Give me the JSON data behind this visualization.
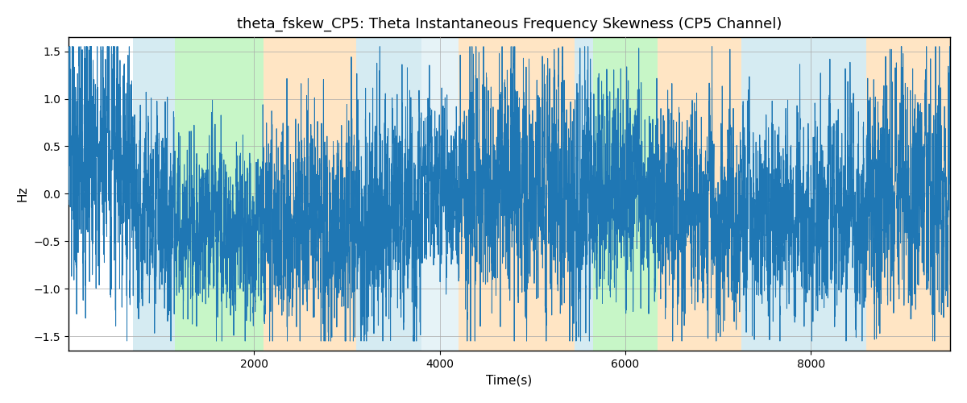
{
  "title": "theta_fskew_CP5: Theta Instantaneous Frequency Skewness (CP5 Channel)",
  "xlabel": "Time(s)",
  "ylabel": "Hz",
  "ylim": [
    -1.65,
    1.65
  ],
  "xlim": [
    0,
    9500
  ],
  "line_color": "#1f77b4",
  "line_width": 0.7,
  "grid_color": "#aaaaaa",
  "grid_linewidth": 0.5,
  "yticks": [
    -1.5,
    -1.0,
    -0.5,
    0.0,
    0.5,
    1.0,
    1.5
  ],
  "xticks": [
    2000,
    4000,
    6000,
    8000
  ],
  "colored_bands": [
    {
      "xmin": 700,
      "xmax": 1150,
      "color": "#add8e6",
      "alpha": 0.5
    },
    {
      "xmin": 1150,
      "xmax": 2100,
      "color": "#90ee90",
      "alpha": 0.5
    },
    {
      "xmin": 2100,
      "xmax": 3100,
      "color": "#ffd59e",
      "alpha": 0.6
    },
    {
      "xmin": 3100,
      "xmax": 3800,
      "color": "#add8e6",
      "alpha": 0.5
    },
    {
      "xmin": 3800,
      "xmax": 4200,
      "color": "#add8e6",
      "alpha": 0.3
    },
    {
      "xmin": 4200,
      "xmax": 5450,
      "color": "#ffd59e",
      "alpha": 0.6
    },
    {
      "xmin": 5450,
      "xmax": 5650,
      "color": "#add8e6",
      "alpha": 0.5
    },
    {
      "xmin": 5650,
      "xmax": 6350,
      "color": "#90ee90",
      "alpha": 0.5
    },
    {
      "xmin": 6350,
      "xmax": 7250,
      "color": "#ffd59e",
      "alpha": 0.6
    },
    {
      "xmin": 7250,
      "xmax": 8600,
      "color": "#add8e6",
      "alpha": 0.5
    },
    {
      "xmin": 8600,
      "xmax": 9500,
      "color": "#ffd59e",
      "alpha": 0.6
    }
  ],
  "title_fontsize": 13,
  "label_fontsize": 11,
  "tick_fontsize": 10,
  "figsize": [
    12.0,
    5.0
  ],
  "dpi": 100,
  "seed": 12345,
  "n_points": 9500,
  "segment_params": [
    {
      "start": 0,
      "end": 700,
      "freq": 12,
      "amp": 0.7,
      "spike_rate": 0.05,
      "baseline": 0.5
    },
    {
      "start": 700,
      "end": 1150,
      "freq": 8,
      "amp": 0.5,
      "spike_rate": 0.04,
      "baseline": -0.2
    },
    {
      "start": 1150,
      "end": 2100,
      "freq": 6,
      "amp": 0.4,
      "spike_rate": 0.04,
      "baseline": -0.4
    },
    {
      "start": 2100,
      "end": 3100,
      "freq": 10,
      "amp": 0.5,
      "spike_rate": 0.06,
      "baseline": -0.3
    },
    {
      "start": 3100,
      "end": 3800,
      "freq": 7,
      "amp": 0.6,
      "spike_rate": 0.05,
      "baseline": -0.2
    },
    {
      "start": 3800,
      "end": 4200,
      "freq": 7,
      "amp": 0.4,
      "spike_rate": 0.04,
      "baseline": 0.0
    },
    {
      "start": 4200,
      "end": 5450,
      "freq": 9,
      "amp": 0.6,
      "spike_rate": 0.06,
      "baseline": 0.1
    },
    {
      "start": 5450,
      "end": 5650,
      "freq": 10,
      "amp": 0.7,
      "spike_rate": 0.06,
      "baseline": 0.0
    },
    {
      "start": 5650,
      "end": 6350,
      "freq": 8,
      "amp": 0.5,
      "spike_rate": 0.05,
      "baseline": 0.1
    },
    {
      "start": 6350,
      "end": 7250,
      "freq": 9,
      "amp": 0.5,
      "spike_rate": 0.05,
      "baseline": -0.2
    },
    {
      "start": 7250,
      "end": 8600,
      "freq": 8,
      "amp": 0.5,
      "spike_rate": 0.05,
      "baseline": -0.2
    },
    {
      "start": 8600,
      "end": 9500,
      "freq": 9,
      "amp": 0.6,
      "spike_rate": 0.05,
      "baseline": 0.0
    }
  ]
}
